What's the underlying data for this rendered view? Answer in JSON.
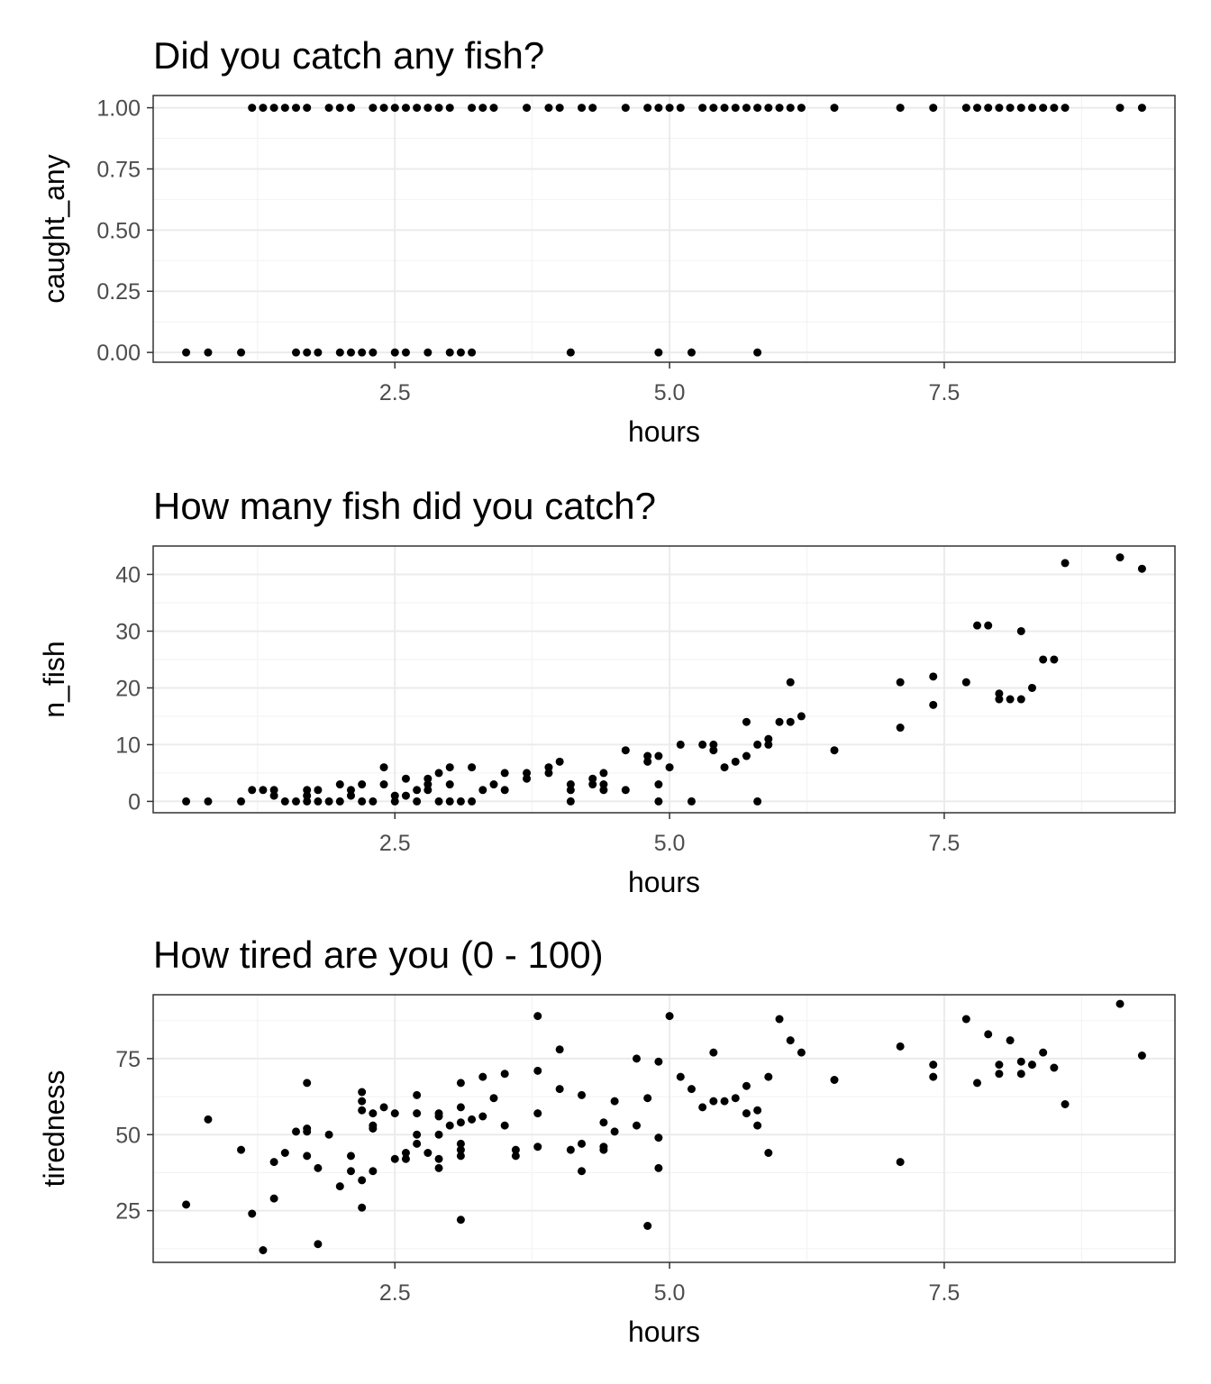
{
  "chart_data": [
    {
      "type": "scatter",
      "title": "Did you catch any fish?",
      "xlabel": "hours",
      "ylabel": "caught_any",
      "xlim": [
        0.3,
        9.6
      ],
      "ylim": [
        -0.04,
        1.05
      ],
      "xticks": [
        2.5,
        5.0,
        7.5
      ],
      "xtick_labels": [
        "2.5",
        "5.0",
        "7.5"
      ],
      "yticks": [
        0,
        0.25,
        0.5,
        0.75,
        1.0
      ],
      "ytick_labels": [
        "0.00",
        "0.25",
        "0.50",
        "0.75",
        "1.00"
      ],
      "grid": true,
      "points": [
        [
          0.6,
          0
        ],
        [
          0.8,
          0
        ],
        [
          1.1,
          0
        ],
        [
          1.6,
          0
        ],
        [
          1.7,
          0
        ],
        [
          1.8,
          0
        ],
        [
          2.0,
          0
        ],
        [
          2.1,
          0
        ],
        [
          2.2,
          0
        ],
        [
          2.3,
          0
        ],
        [
          2.5,
          0
        ],
        [
          2.6,
          0
        ],
        [
          2.8,
          0
        ],
        [
          3.0,
          0
        ],
        [
          3.1,
          0
        ],
        [
          3.2,
          0
        ],
        [
          4.1,
          0
        ],
        [
          4.9,
          0
        ],
        [
          5.2,
          0
        ],
        [
          5.8,
          0
        ],
        [
          1.2,
          1
        ],
        [
          1.3,
          1
        ],
        [
          1.4,
          1
        ],
        [
          1.5,
          1
        ],
        [
          1.6,
          1
        ],
        [
          1.7,
          1
        ],
        [
          1.9,
          1
        ],
        [
          2.0,
          1
        ],
        [
          2.1,
          1
        ],
        [
          2.3,
          1
        ],
        [
          2.4,
          1
        ],
        [
          2.5,
          1
        ],
        [
          2.6,
          1
        ],
        [
          2.7,
          1
        ],
        [
          2.8,
          1
        ],
        [
          2.9,
          1
        ],
        [
          3.0,
          1
        ],
        [
          3.2,
          1
        ],
        [
          3.3,
          1
        ],
        [
          3.4,
          1
        ],
        [
          3.7,
          1
        ],
        [
          3.9,
          1
        ],
        [
          4.0,
          1
        ],
        [
          4.2,
          1
        ],
        [
          4.3,
          1
        ],
        [
          4.6,
          1
        ],
        [
          4.8,
          1
        ],
        [
          4.9,
          1
        ],
        [
          5.0,
          1
        ],
        [
          5.1,
          1
        ],
        [
          5.3,
          1
        ],
        [
          5.4,
          1
        ],
        [
          5.5,
          1
        ],
        [
          5.6,
          1
        ],
        [
          5.7,
          1
        ],
        [
          5.8,
          1
        ],
        [
          5.9,
          1
        ],
        [
          6.0,
          1
        ],
        [
          6.1,
          1
        ],
        [
          6.2,
          1
        ],
        [
          6.5,
          1
        ],
        [
          7.1,
          1
        ],
        [
          7.4,
          1
        ],
        [
          7.7,
          1
        ],
        [
          7.8,
          1
        ],
        [
          7.9,
          1
        ],
        [
          8.0,
          1
        ],
        [
          8.1,
          1
        ],
        [
          8.2,
          1
        ],
        [
          8.3,
          1
        ],
        [
          8.4,
          1
        ],
        [
          8.5,
          1
        ],
        [
          8.6,
          1
        ],
        [
          9.1,
          1
        ],
        [
          9.3,
          1
        ]
      ]
    },
    {
      "type": "scatter",
      "title": "How many fish did you catch?",
      "xlabel": "hours",
      "ylabel": "n_fish",
      "xlim": [
        0.3,
        9.6
      ],
      "ylim": [
        -2,
        45
      ],
      "xticks": [
        2.5,
        5.0,
        7.5
      ],
      "xtick_labels": [
        "2.5",
        "5.0",
        "7.5"
      ],
      "yticks": [
        0,
        10,
        20,
        30,
        40
      ],
      "ytick_labels": [
        "0",
        "10",
        "20",
        "30",
        "40"
      ],
      "grid": true,
      "points": [
        [
          0.6,
          0
        ],
        [
          0.8,
          0
        ],
        [
          1.1,
          0
        ],
        [
          1.2,
          2
        ],
        [
          1.3,
          2
        ],
        [
          1.4,
          2
        ],
        [
          1.4,
          1
        ],
        [
          1.5,
          0
        ],
        [
          1.6,
          0
        ],
        [
          1.7,
          0
        ],
        [
          1.7,
          2
        ],
        [
          1.7,
          1
        ],
        [
          1.8,
          2
        ],
        [
          1.8,
          0
        ],
        [
          1.9,
          0
        ],
        [
          2.0,
          0
        ],
        [
          2.0,
          3
        ],
        [
          2.1,
          1
        ],
        [
          2.1,
          2
        ],
        [
          2.2,
          0
        ],
        [
          2.2,
          3
        ],
        [
          2.3,
          0
        ],
        [
          2.4,
          3
        ],
        [
          2.4,
          6
        ],
        [
          2.5,
          1
        ],
        [
          2.5,
          0
        ],
        [
          2.6,
          1
        ],
        [
          2.6,
          4
        ],
        [
          2.7,
          2
        ],
        [
          2.7,
          0
        ],
        [
          2.8,
          3
        ],
        [
          2.8,
          4
        ],
        [
          2.8,
          2
        ],
        [
          2.9,
          5
        ],
        [
          2.9,
          0
        ],
        [
          3.0,
          3
        ],
        [
          3.0,
          6
        ],
        [
          3.0,
          0
        ],
        [
          3.1,
          0
        ],
        [
          3.2,
          0
        ],
        [
          3.2,
          6
        ],
        [
          3.3,
          2
        ],
        [
          3.4,
          3
        ],
        [
          3.5,
          5
        ],
        [
          3.5,
          2
        ],
        [
          3.7,
          5
        ],
        [
          3.7,
          4
        ],
        [
          3.9,
          6
        ],
        [
          3.9,
          5
        ],
        [
          4.0,
          7
        ],
        [
          4.1,
          3
        ],
        [
          4.1,
          2
        ],
        [
          4.1,
          0
        ],
        [
          4.3,
          4
        ],
        [
          4.3,
          3
        ],
        [
          4.4,
          5
        ],
        [
          4.4,
          3
        ],
        [
          4.4,
          2
        ],
        [
          4.6,
          9
        ],
        [
          4.6,
          2
        ],
        [
          4.8,
          8
        ],
        [
          4.8,
          7
        ],
        [
          4.9,
          8
        ],
        [
          4.9,
          3
        ],
        [
          4.9,
          0
        ],
        [
          5.0,
          6
        ],
        [
          5.1,
          10
        ],
        [
          5.2,
          0
        ],
        [
          5.3,
          10
        ],
        [
          5.4,
          9
        ],
        [
          5.4,
          10
        ],
        [
          5.5,
          6
        ],
        [
          5.6,
          7
        ],
        [
          5.7,
          8
        ],
        [
          5.7,
          14
        ],
        [
          5.8,
          10
        ],
        [
          5.8,
          0
        ],
        [
          5.9,
          11
        ],
        [
          5.9,
          10
        ],
        [
          6.0,
          14
        ],
        [
          6.1,
          14
        ],
        [
          6.1,
          21
        ],
        [
          6.2,
          15
        ],
        [
          6.5,
          9
        ],
        [
          7.1,
          13
        ],
        [
          7.1,
          21
        ],
        [
          7.4,
          22
        ],
        [
          7.4,
          17
        ],
        [
          7.7,
          21
        ],
        [
          7.8,
          31
        ],
        [
          7.9,
          31
        ],
        [
          8.0,
          19
        ],
        [
          8.0,
          18
        ],
        [
          8.1,
          18
        ],
        [
          8.2,
          30
        ],
        [
          8.2,
          18
        ],
        [
          8.3,
          20
        ],
        [
          8.4,
          25
        ],
        [
          8.5,
          25
        ],
        [
          8.6,
          42
        ],
        [
          9.1,
          43
        ],
        [
          9.3,
          41
        ]
      ]
    },
    {
      "type": "scatter",
      "title": "How tired are you (0 - 100)",
      "xlabel": "hours",
      "ylabel": "tiredness",
      "xlim": [
        0.3,
        9.6
      ],
      "ylim": [
        8,
        96
      ],
      "xticks": [
        2.5,
        5.0,
        7.5
      ],
      "xtick_labels": [
        "2.5",
        "5.0",
        "7.5"
      ],
      "yticks": [
        25,
        50,
        75
      ],
      "ytick_labels": [
        "25",
        "50",
        "75"
      ],
      "grid": true,
      "points": [
        [
          0.6,
          27
        ],
        [
          0.8,
          55
        ],
        [
          1.1,
          45
        ],
        [
          1.2,
          24
        ],
        [
          1.3,
          12
        ],
        [
          1.4,
          41
        ],
        [
          1.4,
          29
        ],
        [
          1.5,
          44
        ],
        [
          1.6,
          51
        ],
        [
          1.7,
          52
        ],
        [
          1.7,
          51
        ],
        [
          1.7,
          43
        ],
        [
          1.7,
          67
        ],
        [
          1.8,
          39
        ],
        [
          1.8,
          14
        ],
        [
          1.9,
          50
        ],
        [
          2.0,
          33
        ],
        [
          2.1,
          43
        ],
        [
          2.1,
          38
        ],
        [
          2.2,
          26
        ],
        [
          2.2,
          64
        ],
        [
          2.2,
          61
        ],
        [
          2.2,
          58
        ],
        [
          2.2,
          35
        ],
        [
          2.3,
          57
        ],
        [
          2.3,
          53
        ],
        [
          2.3,
          52
        ],
        [
          2.3,
          38
        ],
        [
          2.4,
          59
        ],
        [
          2.5,
          57
        ],
        [
          2.5,
          42
        ],
        [
          2.6,
          44
        ],
        [
          2.6,
          42
        ],
        [
          2.7,
          63
        ],
        [
          2.7,
          57
        ],
        [
          2.7,
          50
        ],
        [
          2.7,
          47
        ],
        [
          2.8,
          44
        ],
        [
          2.9,
          57
        ],
        [
          2.9,
          56
        ],
        [
          2.9,
          50
        ],
        [
          2.9,
          42
        ],
        [
          2.9,
          39
        ],
        [
          3.0,
          53
        ],
        [
          3.1,
          67
        ],
        [
          3.1,
          59
        ],
        [
          3.1,
          54
        ],
        [
          3.1,
          47
        ],
        [
          3.1,
          45
        ],
        [
          3.1,
          43
        ],
        [
          3.1,
          22
        ],
        [
          3.2,
          55
        ],
        [
          3.3,
          69
        ],
        [
          3.3,
          56
        ],
        [
          3.4,
          62
        ],
        [
          3.5,
          70
        ],
        [
          3.5,
          53
        ],
        [
          3.6,
          45
        ],
        [
          3.6,
          43
        ],
        [
          3.8,
          89
        ],
        [
          3.8,
          71
        ],
        [
          3.8,
          57
        ],
        [
          3.8,
          46
        ],
        [
          4.0,
          78
        ],
        [
          4.0,
          65
        ],
        [
          4.1,
          45
        ],
        [
          4.2,
          63
        ],
        [
          4.2,
          47
        ],
        [
          4.2,
          38
        ],
        [
          4.4,
          54
        ],
        [
          4.4,
          46
        ],
        [
          4.4,
          45
        ],
        [
          4.5,
          61
        ],
        [
          4.5,
          51
        ],
        [
          4.7,
          75
        ],
        [
          4.7,
          53
        ],
        [
          4.8,
          20
        ],
        [
          4.8,
          62
        ],
        [
          4.9,
          74
        ],
        [
          4.9,
          49
        ],
        [
          4.9,
          39
        ],
        [
          5.0,
          89
        ],
        [
          5.1,
          69
        ],
        [
          5.2,
          65
        ],
        [
          5.3,
          59
        ],
        [
          5.4,
          77
        ],
        [
          5.4,
          61
        ],
        [
          5.5,
          61
        ],
        [
          5.6,
          62
        ],
        [
          5.7,
          66
        ],
        [
          5.7,
          57
        ],
        [
          5.8,
          58
        ],
        [
          5.8,
          53
        ],
        [
          5.9,
          69
        ],
        [
          5.9,
          44
        ],
        [
          6.0,
          88
        ],
        [
          6.1,
          81
        ],
        [
          6.2,
          77
        ],
        [
          6.5,
          68
        ],
        [
          7.1,
          79
        ],
        [
          7.1,
          41
        ],
        [
          7.4,
          73
        ],
        [
          7.4,
          69
        ],
        [
          7.7,
          88
        ],
        [
          7.8,
          67
        ],
        [
          7.9,
          83
        ],
        [
          8.0,
          73
        ],
        [
          8.0,
          70
        ],
        [
          8.1,
          81
        ],
        [
          8.2,
          74
        ],
        [
          8.2,
          70
        ],
        [
          8.3,
          73
        ],
        [
          8.4,
          77
        ],
        [
          8.5,
          72
        ],
        [
          8.6,
          60
        ],
        [
          9.1,
          93
        ],
        [
          9.3,
          76
        ]
      ]
    }
  ]
}
